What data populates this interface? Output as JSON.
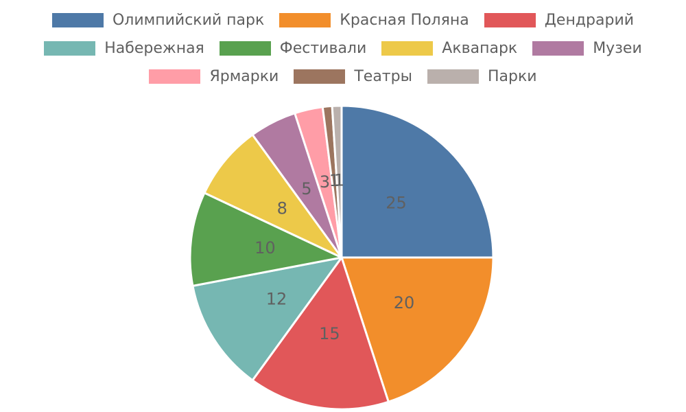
{
  "chart_data": {
    "type": "pie",
    "labels": [
      "Олимпийский парк",
      "Красная Поляна",
      "Дендрарий",
      "Набережная",
      "Фестивали",
      "Аквапарк",
      "Музеи",
      "Ярмарки",
      "Театры",
      "Парки"
    ],
    "values": [
      25,
      20,
      15,
      12,
      10,
      8,
      5,
      3,
      1,
      1
    ],
    "value_labels": [
      "25",
      "20",
      "15",
      "12",
      "10",
      "8",
      "5",
      "3",
      "1",
      "1"
    ],
    "colors": [
      "#4e79a7",
      "#f28e2b",
      "#e15759",
      "#76b7b2",
      "#59a14f",
      "#edc949",
      "#b07aa1",
      "#ff9da7",
      "#9c755f",
      "#bab0ac"
    ],
    "start_angle_deg": 90,
    "direction": "clockwise",
    "wedge_edge_color": "#ffffff",
    "value_label_color": "#606060",
    "background": "#ffffff",
    "legend_position": "top",
    "legend_rows": [
      [
        0,
        1,
        2
      ],
      [
        3,
        4,
        5,
        6
      ],
      [
        7,
        8,
        9
      ]
    ]
  }
}
